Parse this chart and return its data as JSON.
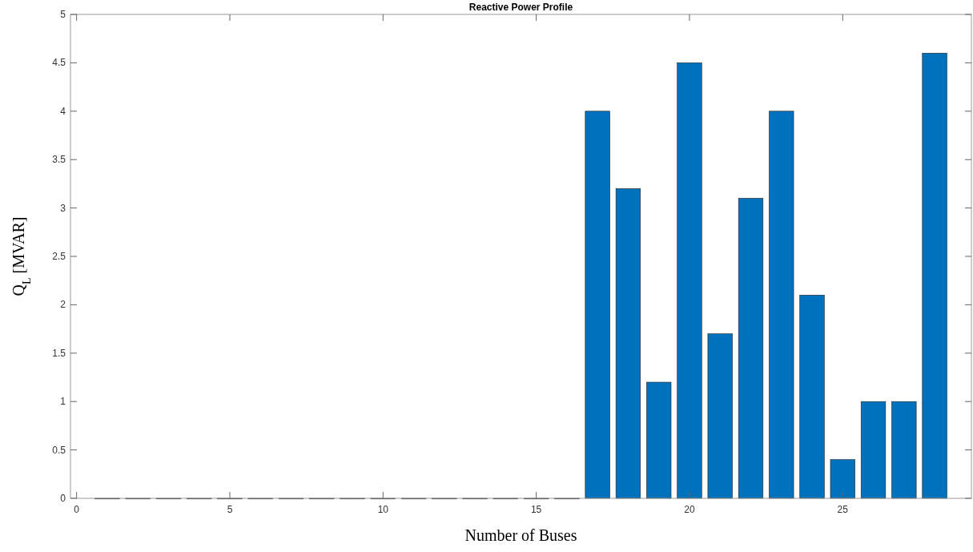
{
  "chart_data": {
    "type": "bar",
    "title": "Reactive Power Profile",
    "xlabel": "Number of Buses",
    "ylabel": "Q$_{L}$ [MVAR]",
    "x": [
      1,
      2,
      3,
      4,
      5,
      6,
      7,
      8,
      9,
      10,
      11,
      12,
      13,
      14,
      15,
      16,
      17,
      18,
      19,
      20,
      21,
      22,
      23,
      24,
      25,
      26,
      27,
      28
    ],
    "values": [
      0,
      0,
      0,
      0,
      0,
      0,
      0,
      0,
      0,
      0,
      0,
      0,
      0,
      0,
      0,
      0,
      4,
      3.2,
      1.2,
      4.5,
      1.7,
      3.1,
      4,
      2.1,
      0.4,
      1,
      1,
      4.6
    ],
    "color": "#0072bd",
    "xlim": [
      -0.2,
      29.2
    ],
    "xticks": [
      0,
      5,
      10,
      15,
      20,
      25
    ],
    "ylim": [
      0,
      5
    ],
    "yticks": [
      0,
      0.5,
      1,
      1.5,
      2,
      2.5,
      3,
      3.5,
      4,
      4.5,
      5
    ],
    "grid": false
  }
}
